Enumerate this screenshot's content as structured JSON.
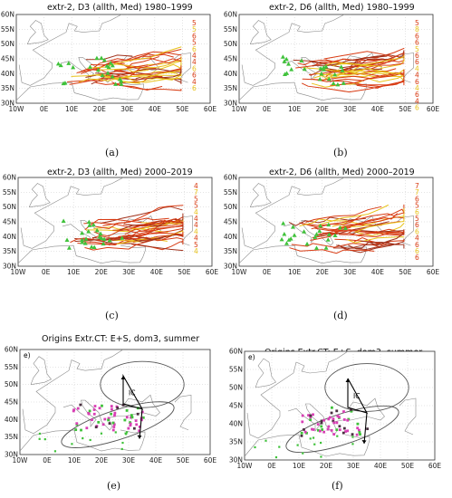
{
  "panels": [
    {
      "id": "a",
      "title": "extr-2, D3 (allth, Med) 1980–1999",
      "label": "(a)",
      "kind": "tracks",
      "lat_ticks": [
        "60N",
        "55N",
        "50N",
        "45N",
        "40N",
        "35N",
        "30N"
      ],
      "lon_ticks": [
        "10W",
        "0E",
        "10E",
        "20E",
        "30E",
        "40E",
        "50E",
        "60E"
      ],
      "side_numbers": [
        "5",
        "5",
        "6",
        "5",
        "6",
        "4",
        "4",
        "6",
        "6",
        "4",
        "6"
      ]
    },
    {
      "id": "b",
      "title": "extr-2, D6 (allth, Med) 1980–1999",
      "label": "(b)",
      "kind": "tracks",
      "lat_ticks": [
        "60N",
        "55N",
        "50N",
        "45N",
        "40N",
        "35N",
        "30N"
      ],
      "lon_ticks": [
        "10W",
        "0E",
        "10E",
        "20E",
        "30E",
        "40E",
        "50E",
        "60E"
      ],
      "side_numbers": [
        "5",
        "8",
        "6",
        "6",
        "5",
        "6",
        "6",
        "4",
        "4",
        "6",
        "4",
        "6",
        "4",
        "6"
      ]
    },
    {
      "id": "c",
      "title": "extr-2, D3 (allth, Med) 2000–2019",
      "label": "(c)",
      "kind": "tracks",
      "lat_ticks": [
        "60N",
        "55N",
        "50N",
        "45N",
        "40N",
        "35N",
        "30N"
      ],
      "lon_ticks": [
        "10W",
        "0E",
        "10E",
        "20E",
        "30E",
        "40E",
        "50E",
        "60E"
      ],
      "side_numbers": [
        "4",
        "7",
        "5",
        "5",
        "4",
        "4",
        "4",
        "4",
        "4",
        "5",
        "4"
      ]
    },
    {
      "id": "d",
      "title": "extr-2, D6 (allth, Med) 2000–2019",
      "label": "(d)",
      "kind": "tracks",
      "lat_ticks": [
        "60N",
        "55N",
        "50N",
        "45N",
        "40N",
        "35N",
        "30N"
      ],
      "lon_ticks": [
        "10W",
        "0E",
        "10E",
        "20E",
        "30E",
        "40E",
        "50E",
        "60E"
      ],
      "side_numbers": [
        "7",
        "7",
        "6",
        "5",
        "6",
        "5",
        "6",
        "6",
        "4",
        "6",
        "6",
        "6"
      ]
    },
    {
      "id": "e",
      "title": "Origins Extr.CT: E+S, dom3, summer",
      "label": "(e)",
      "kind": "origins",
      "corner": "e)",
      "ic_label": "IC",
      "lat_ticks": [
        "60N",
        "55N",
        "50N",
        "45N",
        "40N",
        "35N",
        "30N"
      ],
      "lon_ticks": [
        "10W",
        "0E",
        "10E",
        "20E",
        "30E",
        "40E",
        "50E",
        "60E"
      ]
    },
    {
      "id": "f",
      "title": "Origins Extr.CT: E+S, dom3, summer",
      "label": "(f)",
      "kind": "origins",
      "corner": "e)",
      "ic_label": "IC",
      "lat_ticks": [
        "60N",
        "55N",
        "50N",
        "45N",
        "40N",
        "35N",
        "30N"
      ],
      "lon_ticks": [
        "10W",
        "0E",
        "10E",
        "20E",
        "30E",
        "40E",
        "50E",
        "60E"
      ]
    }
  ],
  "colors": {
    "track_main": "#d83a12",
    "track_alt": "#e8c21a",
    "track_dark": "#a0301a",
    "origin_green": "#3fc23a",
    "origin_magenta": "#d83fb4",
    "origin_dark": "#4a3040",
    "coast": "#8a8a8a"
  }
}
